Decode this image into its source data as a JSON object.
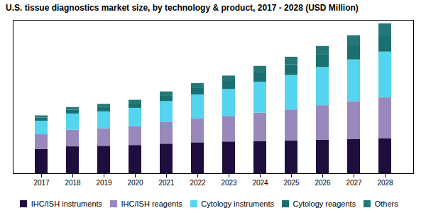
{
  "chart_data": {
    "type": "bar",
    "title": "U.S. tissue diagnostics market size, by technology & product, 2017 - 2028 (USD Million)",
    "categories": [
      "2017",
      "2018",
      "2019",
      "2020",
      "2021",
      "2022",
      "2023",
      "2024",
      "2025",
      "2026",
      "2027",
      "2028"
    ],
    "series": [
      {
        "name": "IHC/ISH instruments",
        "color": "#1e0e3e",
        "values": [
          90,
          100,
          102,
          105,
          110,
          115,
          118,
          120,
          122,
          125,
          128,
          130
        ]
      },
      {
        "name": "IHC/ISH reagents",
        "color": "#9988bb",
        "values": [
          55,
          62,
          65,
          70,
          80,
          88,
          95,
          105,
          115,
          128,
          140,
          152
        ]
      },
      {
        "name": "Cytology instruments",
        "color": "#55d4f0",
        "values": [
          50,
          60,
          63,
          68,
          78,
          90,
          100,
          115,
          128,
          142,
          155,
          170
        ]
      },
      {
        "name": "Cytology reagents",
        "color": "#1a7070",
        "values": [
          12,
          14,
          16,
          18,
          22,
          26,
          30,
          35,
          40,
          46,
          52,
          60
        ]
      },
      {
        "name": "Others",
        "color": "#267878",
        "values": [
          8,
          10,
          12,
          12,
          14,
          16,
          20,
          24,
          28,
          32,
          38,
          45
        ]
      }
    ],
    "ylim": [
      0,
      570
    ],
    "stacked": true,
    "grid": false,
    "legend": "bottom",
    "tick_labels": "x"
  }
}
